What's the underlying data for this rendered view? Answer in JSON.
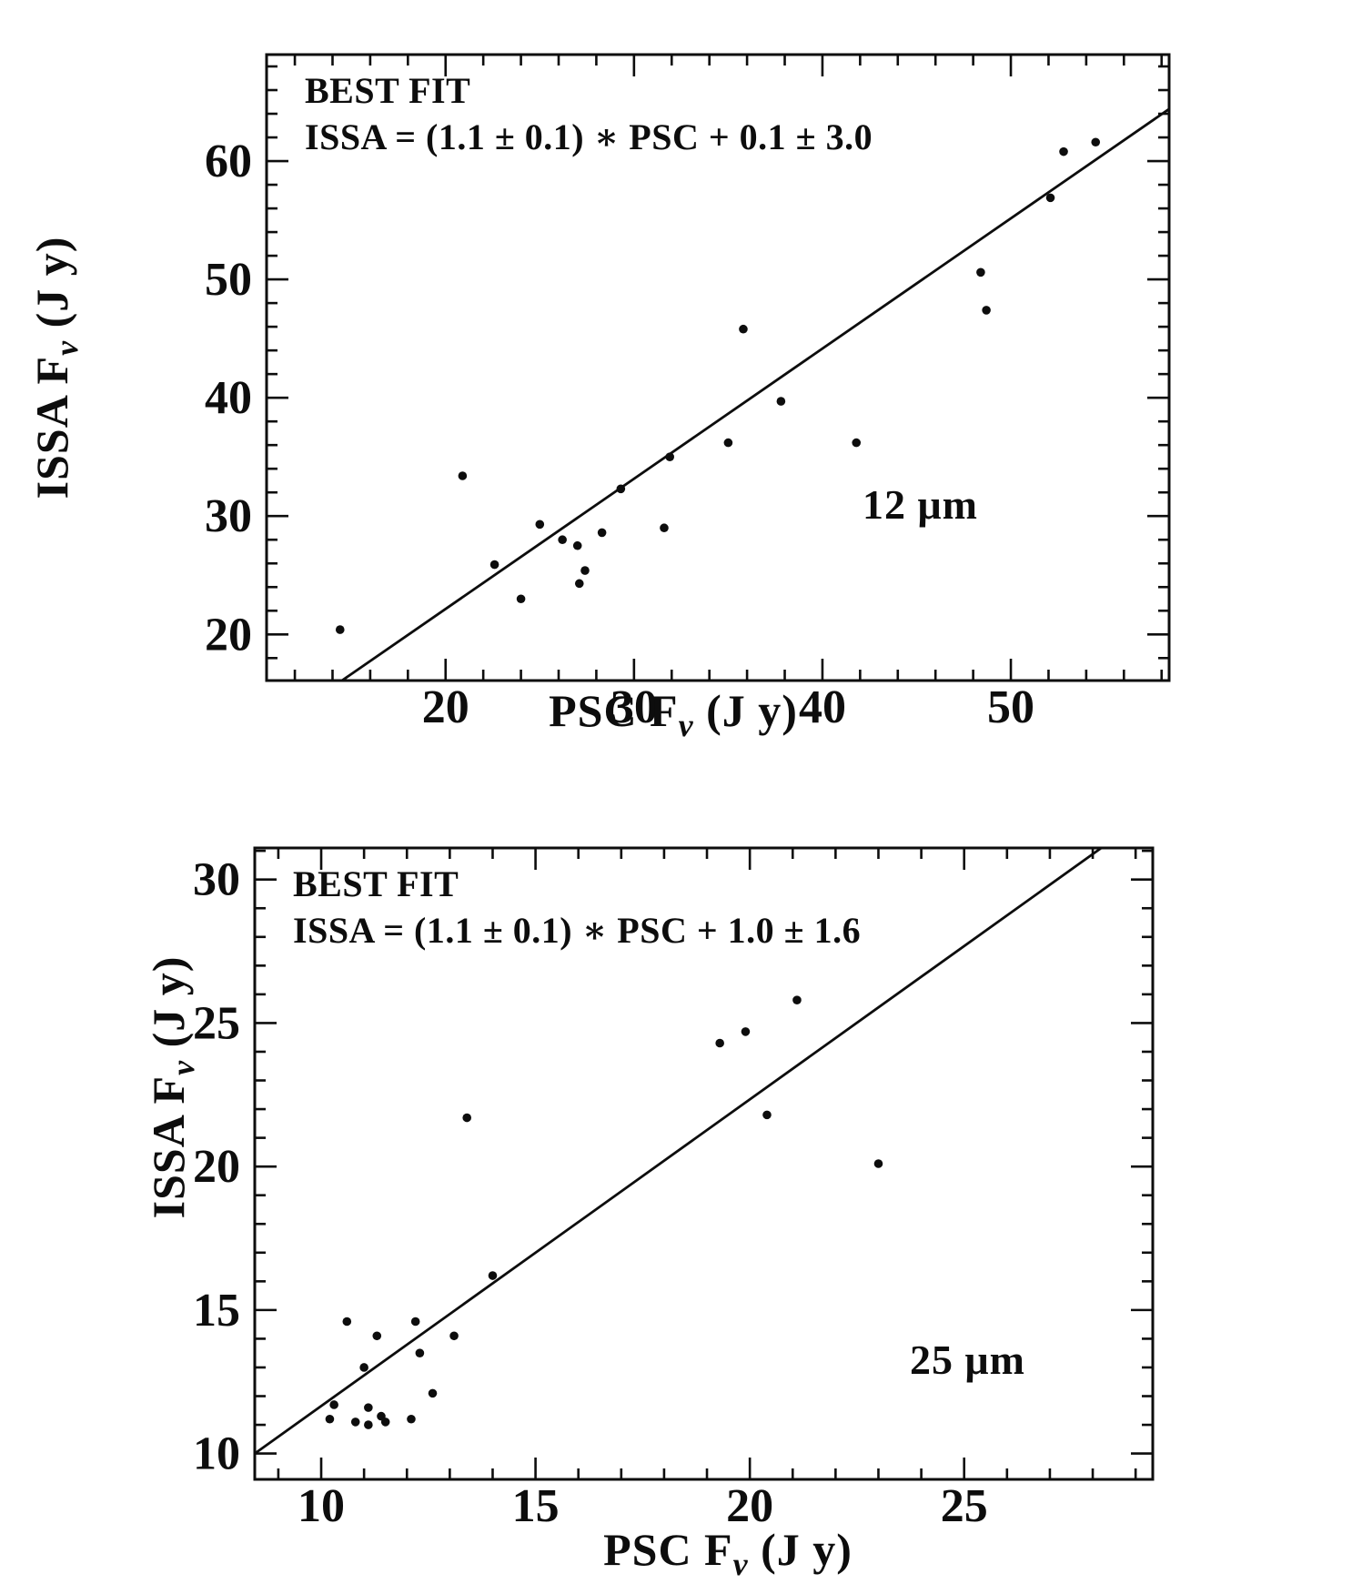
{
  "figure": {
    "background": "#ffffff",
    "ink": "#0d0d0d"
  },
  "chart_data": [
    {
      "type": "scatter",
      "title": "BEST FIT",
      "equation": "ISSA = (1.1 ± 0.1) ∗ PSC + 0.1 ± 3.0",
      "wavelength_label": "12 μm",
      "xlabel": {
        "pre": "PSC F",
        "sub": "ν",
        "post": " (J y)"
      },
      "ylabel": {
        "pre": "ISSA F",
        "sub": "ν",
        "post": " (J y)"
      },
      "xlim": [
        10.5,
        58.4
      ],
      "ylim": [
        16.1,
        69.0
      ],
      "xticks": [
        20,
        30,
        40,
        50
      ],
      "yticks": [
        20,
        30,
        40,
        50,
        60
      ],
      "minor_step": 2,
      "grid": false,
      "legend": "none",
      "fit_line": {
        "x": [
          14.5,
          58.4
        ],
        "y": [
          16.1,
          64.4
        ]
      },
      "points": [
        [
          14.4,
          20.4
        ],
        [
          20.9,
          33.4
        ],
        [
          22.6,
          25.9
        ],
        [
          24.0,
          23.0
        ],
        [
          25.0,
          29.3
        ],
        [
          26.2,
          28.0
        ],
        [
          27.0,
          27.5
        ],
        [
          27.1,
          24.3
        ],
        [
          27.4,
          25.4
        ],
        [
          28.3,
          28.6
        ],
        [
          29.3,
          32.3
        ],
        [
          31.6,
          29.0
        ],
        [
          31.9,
          35.0
        ],
        [
          35.0,
          36.2
        ],
        [
          35.8,
          45.8
        ],
        [
          37.8,
          39.7
        ],
        [
          41.8,
          36.2
        ],
        [
          48.4,
          50.6
        ],
        [
          48.7,
          47.4
        ],
        [
          52.1,
          56.9
        ],
        [
          52.8,
          60.8
        ],
        [
          54.5,
          61.6
        ]
      ]
    },
    {
      "type": "scatter",
      "title": "BEST FIT",
      "equation": "ISSA = (1.1 ± 0.1) ∗ PSC + 1.0 ± 1.6",
      "wavelength_label": "25 μm",
      "xlabel": {
        "pre": "PSC F",
        "sub": "ν",
        "post": " (J y)"
      },
      "ylabel": {
        "pre": "ISSA F",
        "sub": "ν",
        "post": " (J y)"
      },
      "xlim": [
        8.45,
        29.4
      ],
      "ylim": [
        9.1,
        31.1
      ],
      "xticks": [
        10,
        15,
        20,
        25
      ],
      "yticks": [
        10,
        15,
        20,
        25,
        30
      ],
      "minor_step": 1,
      "grid": false,
      "legend": "none",
      "fit_line": {
        "x": [
          8.45,
          28.2
        ],
        "y": [
          10.0,
          31.1
        ]
      },
      "points": [
        [
          10.2,
          11.2
        ],
        [
          10.3,
          11.7
        ],
        [
          10.6,
          14.6
        ],
        [
          10.8,
          11.1
        ],
        [
          11.0,
          13.0
        ],
        [
          11.1,
          11.6
        ],
        [
          11.1,
          11.0
        ],
        [
          11.3,
          14.1
        ],
        [
          11.4,
          11.3
        ],
        [
          11.5,
          11.1
        ],
        [
          12.1,
          11.2
        ],
        [
          12.2,
          14.6
        ],
        [
          12.3,
          13.5
        ],
        [
          12.6,
          12.1
        ],
        [
          13.1,
          14.1
        ],
        [
          13.4,
          21.7
        ],
        [
          14.0,
          16.2
        ],
        [
          19.3,
          24.3
        ],
        [
          19.9,
          24.7
        ],
        [
          20.4,
          21.8
        ],
        [
          21.1,
          25.8
        ],
        [
          23.0,
          20.1
        ]
      ]
    }
  ]
}
